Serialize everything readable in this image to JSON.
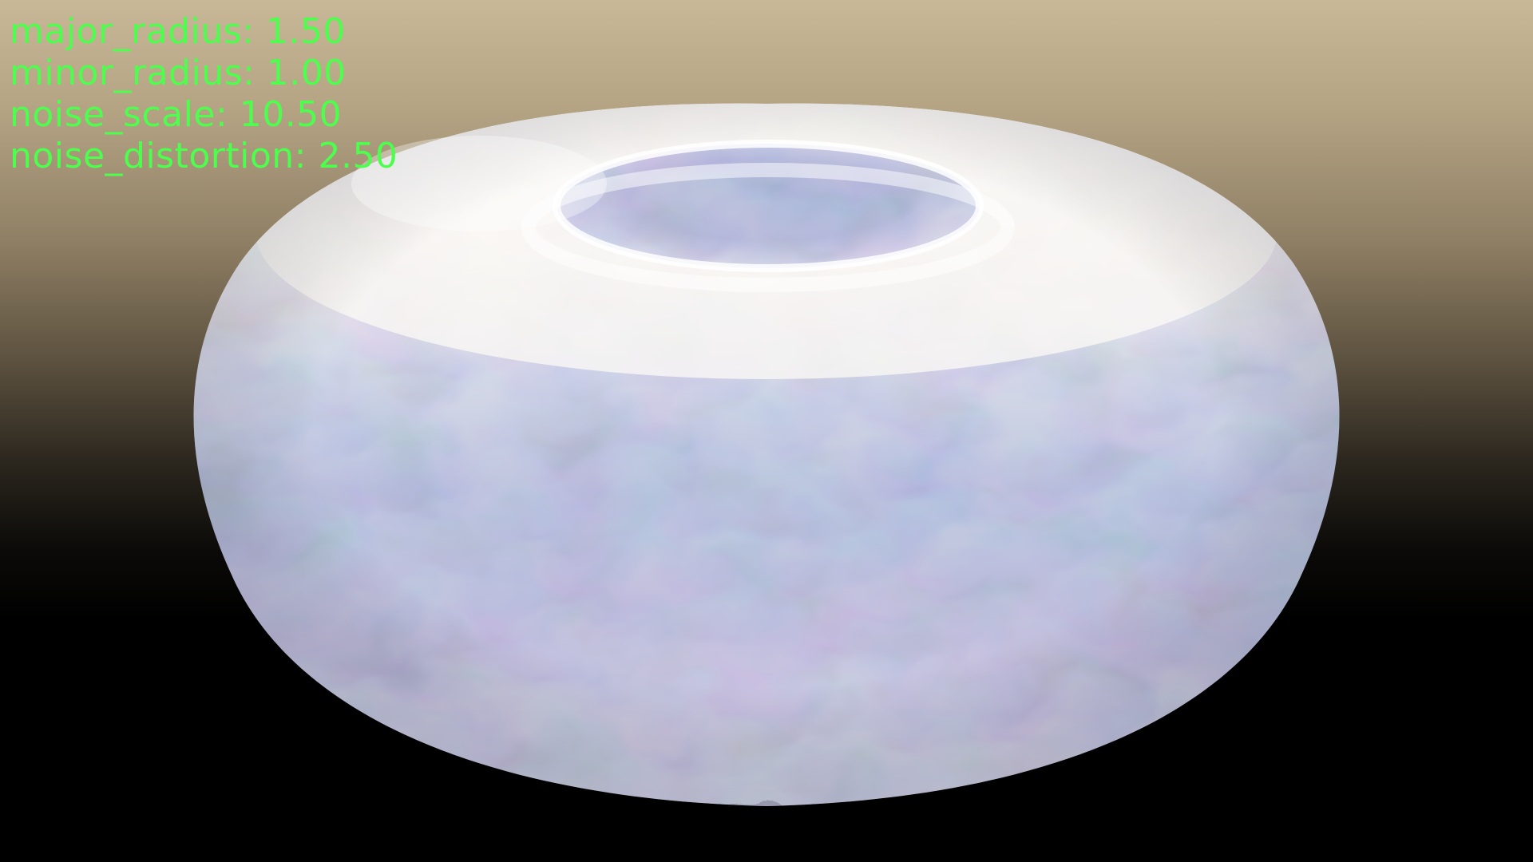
{
  "hud": {
    "lines": [
      "major_radius: 1.50",
      "minor_radius: 1.00",
      "noise_scale: 10.50",
      "noise_distortion: 2.50"
    ],
    "text_color": "#4cff4c"
  },
  "scene": {
    "object": "torus",
    "material": "iridescent soap-bubble",
    "background_top_color": "#c8b898",
    "background_bottom_color": "#000000",
    "surface_highlight_color": "#f6f3ee",
    "surface_tint_colors": [
      "#9fb3d6",
      "#b7a2cf",
      "#a9cfb8",
      "#d9c6a6"
    ]
  }
}
